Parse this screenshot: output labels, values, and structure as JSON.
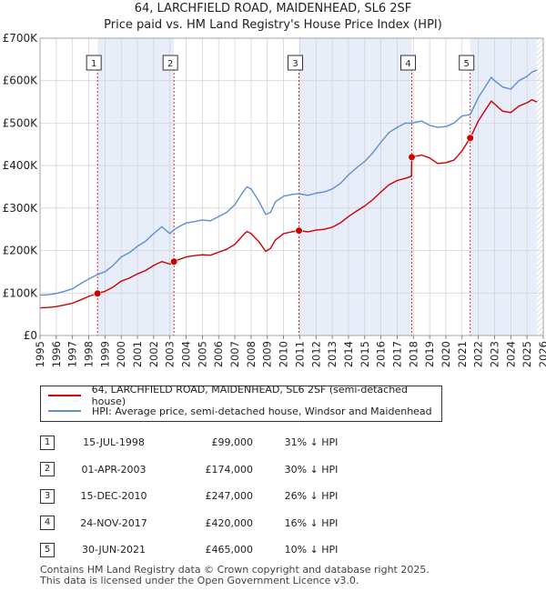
{
  "title": "64, LARCHFIELD ROAD, MAIDENHEAD, SL6 2SF",
  "subtitle": "Price paid vs. HM Land Registry's House Price Index (HPI)",
  "chart_data": {
    "type": "line",
    "title": "64, LARCHFIELD ROAD, MAIDENHEAD, SL6 2SF",
    "subtitle": "Price paid vs. HM Land Registry's House Price Index (HPI)",
    "xlabel": "",
    "ylabel": "",
    "xlim": [
      1995,
      2026
    ],
    "ylim": [
      0,
      700000
    ],
    "y_ticks": [
      {
        "value": 0,
        "label": "£0"
      },
      {
        "value": 100000,
        "label": "£100K"
      },
      {
        "value": 200000,
        "label": "£200K"
      },
      {
        "value": 300000,
        "label": "£300K"
      },
      {
        "value": 400000,
        "label": "£400K"
      },
      {
        "value": 500000,
        "label": "£500K"
      },
      {
        "value": 600000,
        "label": "£600K"
      },
      {
        "value": 700000,
        "label": "£700K"
      }
    ],
    "x_ticks": [
      "1995",
      "1996",
      "1997",
      "1998",
      "1999",
      "2000",
      "2001",
      "2002",
      "2003",
      "2004",
      "2005",
      "2006",
      "2007",
      "2008",
      "2009",
      "2010",
      "2011",
      "2012",
      "2013",
      "2014",
      "2015",
      "2016",
      "2017",
      "2018",
      "2019",
      "2020",
      "2021",
      "2022",
      "2023",
      "2024",
      "2025",
      "2026"
    ],
    "grid": true,
    "colors": {
      "property": "#cc0000",
      "hpi": "#5b8fd1",
      "shade": "#e8eef9",
      "grid": "#d0d0d0",
      "marker_line": "#cc0000"
    },
    "shaded_periods": [
      [
        1998.54,
        2003.25
      ],
      [
        2010.95,
        2017.9
      ],
      [
        2021.5,
        2025.6
      ]
    ],
    "data_end_x": 2025.6,
    "series": [
      {
        "name": "HPI: Average price, semi-detached house, Windsor and Maidenhead",
        "key": "hpi",
        "x": [
          1995,
          1995.5,
          1996,
          1996.5,
          1997,
          1997.5,
          1998,
          1998.5,
          1999,
          1999.5,
          2000,
          2000.5,
          2001,
          2001.5,
          2002,
          2002.5,
          2003,
          2003.25,
          2003.5,
          2004,
          2004.5,
          2005,
          2005.5,
          2006,
          2006.5,
          2007,
          2007.5,
          2007.75,
          2008,
          2008.5,
          2008.9,
          2009.2,
          2009.5,
          2010,
          2010.5,
          2010.95,
          2011.5,
          2012,
          2012.5,
          2013,
          2013.5,
          2014,
          2014.5,
          2015,
          2015.5,
          2016,
          2016.5,
          2017,
          2017.5,
          2017.9,
          2018.5,
          2019,
          2019.5,
          2020,
          2020.5,
          2021,
          2021.5,
          2022,
          2022.5,
          2022.8,
          2023,
          2023.5,
          2024,
          2024.5,
          2025,
          2025.3,
          2025.6
        ],
        "y": [
          95000,
          96000,
          99000,
          104000,
          110000,
          122000,
          133000,
          143000,
          150000,
          165000,
          185000,
          195000,
          210000,
          222000,
          240000,
          256000,
          240000,
          249000,
          255000,
          265000,
          268000,
          272000,
          270000,
          280000,
          290000,
          308000,
          338000,
          350000,
          345000,
          315000,
          285000,
          290000,
          315000,
          328000,
          332000,
          334000,
          330000,
          335000,
          338000,
          345000,
          358000,
          378000,
          395000,
          410000,
          430000,
          455000,
          478000,
          490000,
          500000,
          500000,
          505000,
          495000,
          490000,
          492000,
          500000,
          517000,
          520000,
          560000,
          590000,
          608000,
          600000,
          585000,
          580000,
          600000,
          610000,
          620000,
          625000
        ]
      },
      {
        "name": "64, LARCHFIELD ROAD, MAIDENHEAD, SL6 2SF (semi-detached house)",
        "key": "property",
        "x": [
          1995,
          1995.5,
          1996,
          1996.5,
          1997,
          1997.5,
          1998,
          1998.54,
          1999,
          1999.5,
          2000,
          2000.5,
          2001,
          2001.5,
          2002,
          2002.5,
          2003,
          2003.25,
          2003.5,
          2004,
          2004.5,
          2005,
          2005.5,
          2006,
          2006.5,
          2007,
          2007.5,
          2007.75,
          2008,
          2008.5,
          2008.9,
          2009.2,
          2009.5,
          2010,
          2010.5,
          2010.95,
          2011.5,
          2012,
          2012.5,
          2013,
          2013.5,
          2014,
          2014.5,
          2015,
          2015.5,
          2016,
          2016.5,
          2017,
          2017.5,
          2017.88,
          2017.9,
          2018.5,
          2019,
          2019.5,
          2020,
          2020.5,
          2021,
          2021.5,
          2022,
          2022.5,
          2022.8,
          2023,
          2023.5,
          2024,
          2024.5,
          2025,
          2025.3,
          2025.6
        ],
        "y": [
          65000,
          66000,
          68000,
          72000,
          76000,
          84000,
          92000,
          99000,
          104000,
          114000,
          128000,
          135000,
          145000,
          153000,
          165000,
          174000,
          168000,
          174000,
          178000,
          185000,
          188000,
          190000,
          189000,
          196000,
          203000,
          215000,
          236000,
          245000,
          240000,
          220000,
          198000,
          205000,
          225000,
          240000,
          244000,
          247000,
          244000,
          248000,
          250000,
          255000,
          265000,
          280000,
          293000,
          305000,
          320000,
          338000,
          355000,
          365000,
          370000,
          375000,
          420000,
          425000,
          418000,
          405000,
          407000,
          413000,
          435000,
          465000,
          505000,
          535000,
          552000,
          545000,
          528000,
          525000,
          540000,
          548000,
          555000,
          550000
        ]
      }
    ],
    "sales": [
      {
        "n": "1",
        "date": "15-JUL-1998",
        "x": 1998.54,
        "price": 99000
      },
      {
        "n": "2",
        "date": "01-APR-2003",
        "x": 2003.25,
        "price": 174000
      },
      {
        "n": "3",
        "date": "15-DEC-2010",
        "x": 2010.95,
        "price": 247000
      },
      {
        "n": "4",
        "date": "24-NOV-2017",
        "x": 2017.9,
        "price": 420000
      },
      {
        "n": "5",
        "date": "30-JUN-2021",
        "x": 2021.5,
        "price": 465000
      }
    ]
  },
  "legend": {
    "property": "64, LARCHFIELD ROAD, MAIDENHEAD, SL6 2SF (semi-detached house)",
    "hpi": "HPI: Average price, semi-detached house, Windsor and Maidenhead"
  },
  "table": [
    {
      "n": "1",
      "date": "15-JUL-1998",
      "price": "£99,000",
      "hpi": "31% ↓ HPI"
    },
    {
      "n": "2",
      "date": "01-APR-2003",
      "price": "£174,000",
      "hpi": "30% ↓ HPI"
    },
    {
      "n": "3",
      "date": "15-DEC-2010",
      "price": "£247,000",
      "hpi": "26% ↓ HPI"
    },
    {
      "n": "4",
      "date": "24-NOV-2017",
      "price": "£420,000",
      "hpi": "16% ↓ HPI"
    },
    {
      "n": "5",
      "date": "30-JUN-2021",
      "price": "£465,000",
      "hpi": "10% ↓ HPI"
    }
  ],
  "footer": {
    "line1": "Contains HM Land Registry data © Crown copyright and database right 2025.",
    "line2": "This data is licensed under the Open Government Licence v3.0."
  }
}
